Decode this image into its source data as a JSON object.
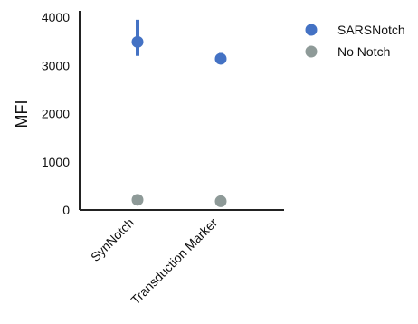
{
  "chart_data": {
    "type": "scatter",
    "title": "",
    "xlabel": "",
    "ylabel": "MFI",
    "categories": [
      "SynNotch",
      "Transduction Marker"
    ],
    "ylim": [
      0,
      4150
    ],
    "yticks": [
      0,
      1000,
      2000,
      3000,
      4000
    ],
    "grid": false,
    "legend_position": "top-right",
    "series": [
      {
        "name": "SARSNotch",
        "color": "#4472c4",
        "values": [
          3490,
          3140
        ],
        "error_low": [
          3200,
          3050
        ],
        "error_high": [
          3950,
          3260
        ]
      },
      {
        "name": "No Notch",
        "color": "#8e9a98",
        "values": [
          210,
          180
        ],
        "error_low": [
          200,
          170
        ],
        "error_high": [
          220,
          190
        ]
      }
    ]
  }
}
